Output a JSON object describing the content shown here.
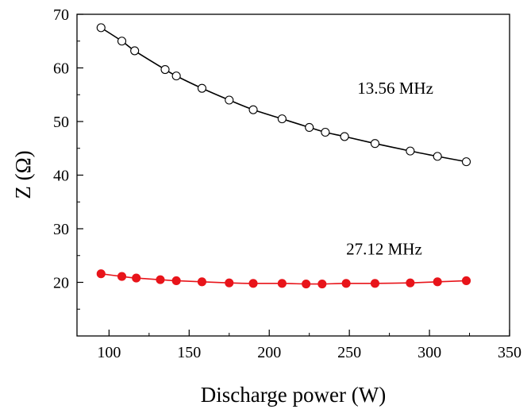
{
  "chart_data": {
    "type": "line",
    "title": "",
    "xlabel": "Discharge power (W)",
    "ylabel": "Z (Ω)",
    "xlim": [
      80,
      350
    ],
    "ylim": [
      10,
      70
    ],
    "x_ticks": [
      100,
      150,
      200,
      250,
      300,
      350
    ],
    "y_ticks": [
      20,
      30,
      40,
      50,
      60,
      70
    ],
    "grid": false,
    "series": [
      {
        "name": "13.56 MHz",
        "marker": "open-circle",
        "color": "#000000",
        "x": [
          95,
          108,
          116,
          135,
          142,
          158,
          175,
          190,
          208,
          225,
          235,
          247,
          266,
          288,
          305,
          323
        ],
        "values": [
          67.5,
          65.0,
          63.2,
          59.7,
          58.5,
          56.2,
          54.0,
          52.2,
          50.5,
          48.9,
          48.0,
          47.2,
          45.9,
          44.5,
          43.5,
          42.5
        ]
      },
      {
        "name": "27.12 MHz",
        "marker": "filled-circle",
        "color": "#e8141a",
        "x": [
          95,
          108,
          117,
          132,
          142,
          158,
          175,
          190,
          208,
          223,
          233,
          248,
          266,
          288,
          305,
          323
        ],
        "values": [
          21.6,
          21.1,
          20.8,
          20.5,
          20.3,
          20.1,
          19.9,
          19.8,
          19.8,
          19.7,
          19.7,
          19.8,
          19.8,
          19.9,
          20.1,
          20.3
        ]
      }
    ]
  }
}
